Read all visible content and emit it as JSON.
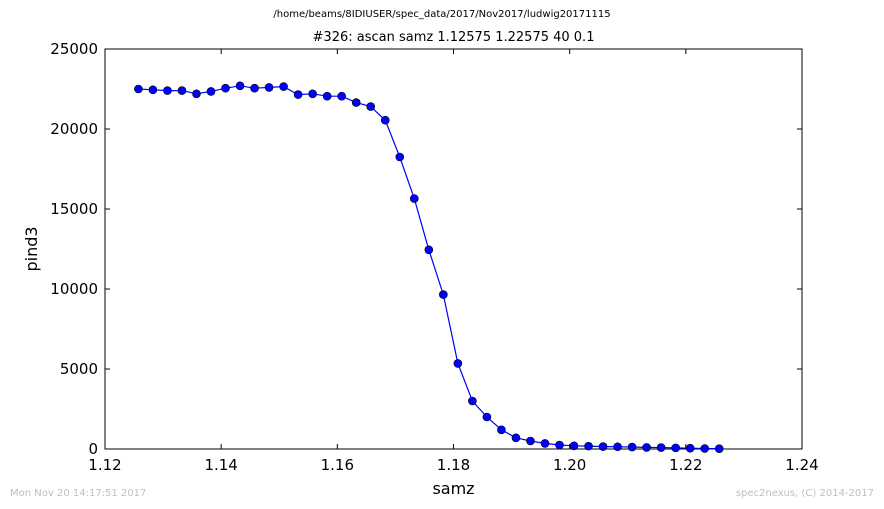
{
  "suptitle": "/home/beams/8IDIUSER/spec_data/2017/Nov2017/ludwig20171115",
  "footer": {
    "left": "Mon Nov 20 14:17:51 2017",
    "right": "spec2nexus, (C) 2014-2017"
  },
  "colors": {
    "series": "#0000ff"
  },
  "chart_data": {
    "type": "line",
    "title": "#326: ascan  samz 1.12575 1.22575  40 0.1",
    "xlabel": "samz",
    "ylabel": "pind3",
    "xlim": [
      1.12,
      1.24
    ],
    "ylim": [
      0,
      25000
    ],
    "xticks": [
      "1.12",
      "1.14",
      "1.16",
      "1.18",
      "1.20",
      "1.22",
      "1.24"
    ],
    "xtick_values": [
      1.12,
      1.14,
      1.16,
      1.18,
      1.2,
      1.22,
      1.24
    ],
    "yticks": [
      "0",
      "5000",
      "10000",
      "15000",
      "20000",
      "25000"
    ],
    "ytick_values": [
      0,
      5000,
      10000,
      15000,
      20000,
      25000
    ],
    "grid": false,
    "marker": "circle",
    "x": [
      1.12575,
      1.12825,
      1.13075,
      1.13325,
      1.13575,
      1.13825,
      1.14075,
      1.14325,
      1.14575,
      1.14825,
      1.15075,
      1.15325,
      1.15575,
      1.15825,
      1.16075,
      1.16325,
      1.16575,
      1.16825,
      1.17075,
      1.17325,
      1.17575,
      1.17825,
      1.18075,
      1.18325,
      1.18575,
      1.18825,
      1.19075,
      1.19325,
      1.19575,
      1.19825,
      1.20075,
      1.20325,
      1.20575,
      1.20825,
      1.21075,
      1.21325,
      1.21575,
      1.21825,
      1.22075,
      1.22325,
      1.22575
    ],
    "y": [
      22500,
      22450,
      22400,
      22400,
      22200,
      22350,
      22550,
      22700,
      22550,
      22600,
      22650,
      22150,
      22200,
      22050,
      22050,
      21650,
      21400,
      20550,
      18250,
      15650,
      12450,
      9650,
      5350,
      3000,
      2000,
      1200,
      700,
      500,
      350,
      250,
      200,
      180,
      150,
      140,
      120,
      100,
      90,
      70,
      50,
      30,
      20
    ]
  }
}
